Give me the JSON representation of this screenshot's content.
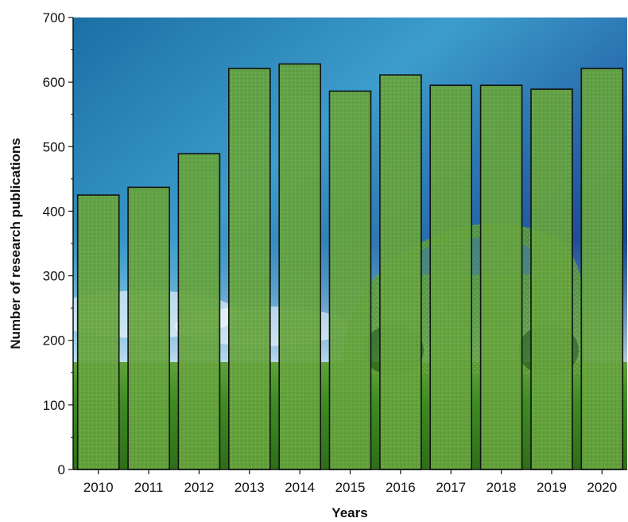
{
  "chart_data": {
    "type": "bar",
    "title": "",
    "xlabel": "Years",
    "ylabel": "Number of research publications",
    "categories": [
      "2010",
      "2011",
      "2012",
      "2013",
      "2014",
      "2015",
      "2016",
      "2017",
      "2018",
      "2019",
      "2020"
    ],
    "values": [
      425,
      437,
      489,
      621,
      628,
      586,
      611,
      595,
      595,
      589,
      621
    ],
    "ylim": [
      0,
      700
    ],
    "yticks": [
      "0",
      "100",
      "200",
      "300",
      "400",
      "500",
      "600",
      "700"
    ],
    "grid": false,
    "legend": "none"
  },
  "colors": {
    "bar_fill": "#5f9e3a",
    "bar_stroke": "#111111",
    "sky_top": "#0d2f6e",
    "sky_mid": "#4aa6cf",
    "grass": "#3f7f22"
  }
}
